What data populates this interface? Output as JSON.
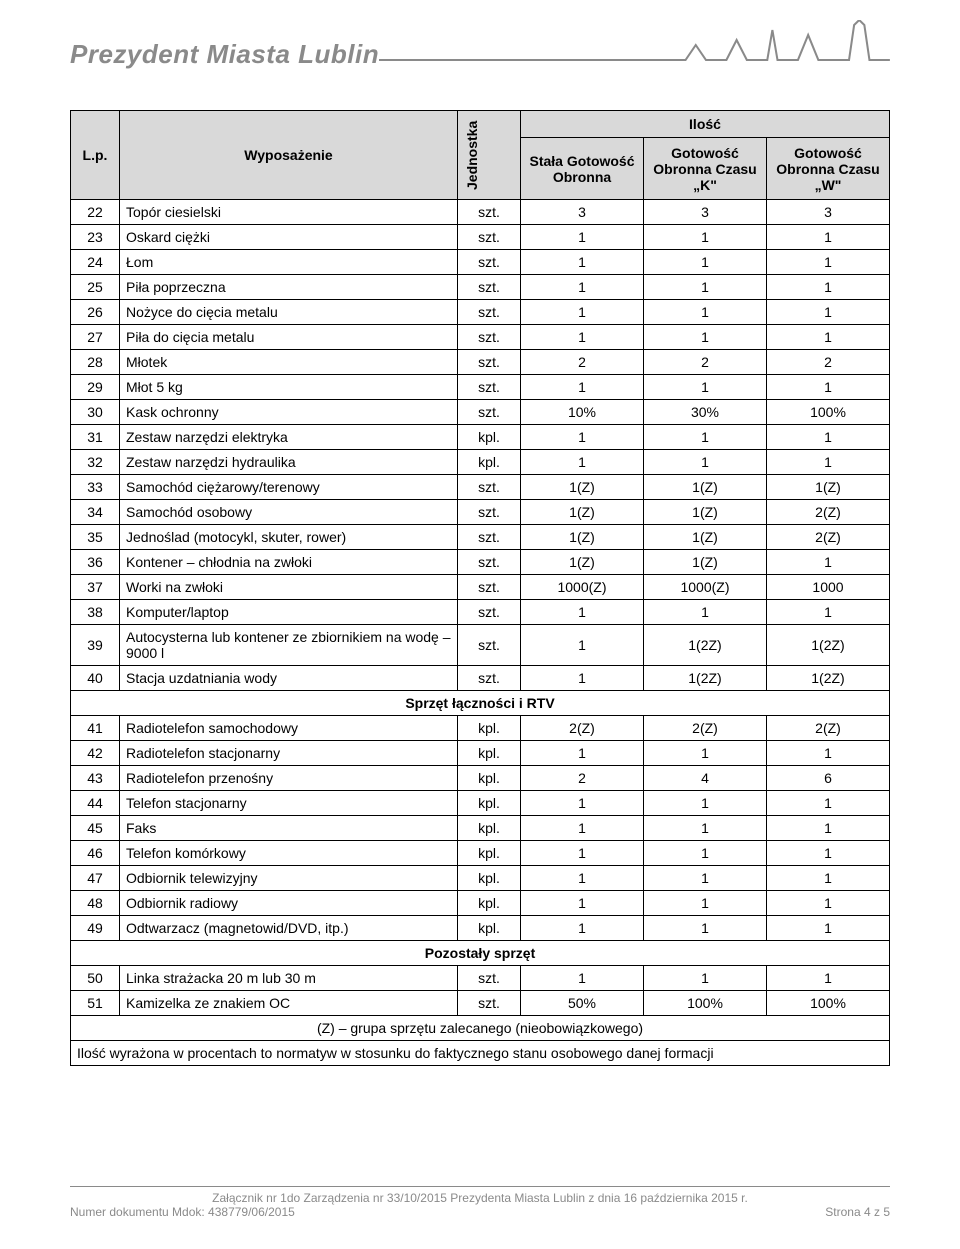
{
  "header": {
    "title": "Prezydent Miasta Lublin"
  },
  "table": {
    "headers": {
      "lp": "L.p.",
      "wyposazenie": "Wyposażenie",
      "jednostka": "Jednostka",
      "ilosc": "Ilość",
      "col1": "Stała Gotowość Obronna",
      "col2": "Gotowość Obronna Czasu „K\"",
      "col3": "Gotowość Obronna Czasu „W\""
    },
    "rows": [
      {
        "lp": "22",
        "name": "Topór ciesielski",
        "unit": "szt.",
        "v1": "3",
        "v2": "3",
        "v3": "3"
      },
      {
        "lp": "23",
        "name": "Oskard ciężki",
        "unit": "szt.",
        "v1": "1",
        "v2": "1",
        "v3": "1"
      },
      {
        "lp": "24",
        "name": "Łom",
        "unit": "szt.",
        "v1": "1",
        "v2": "1",
        "v3": "1"
      },
      {
        "lp": "25",
        "name": "Piła poprzeczna",
        "unit": "szt.",
        "v1": "1",
        "v2": "1",
        "v3": "1"
      },
      {
        "lp": "26",
        "name": "Nożyce do cięcia metalu",
        "unit": "szt.",
        "v1": "1",
        "v2": "1",
        "v3": "1"
      },
      {
        "lp": "27",
        "name": "Piła do cięcia metalu",
        "unit": "szt.",
        "v1": "1",
        "v2": "1",
        "v3": "1"
      },
      {
        "lp": "28",
        "name": "Młotek",
        "unit": "szt.",
        "v1": "2",
        "v2": "2",
        "v3": "2"
      },
      {
        "lp": "29",
        "name": "Młot 5 kg",
        "unit": "szt.",
        "v1": "1",
        "v2": "1",
        "v3": "1"
      },
      {
        "lp": "30",
        "name": "Kask ochronny",
        "unit": "szt.",
        "v1": "10%",
        "v2": "30%",
        "v3": "100%"
      },
      {
        "lp": "31",
        "name": "Zestaw narzędzi elektryka",
        "unit": "kpl.",
        "v1": "1",
        "v2": "1",
        "v3": "1"
      },
      {
        "lp": "32",
        "name": "Zestaw narzędzi hydraulika",
        "unit": "kpl.",
        "v1": "1",
        "v2": "1",
        "v3": "1"
      },
      {
        "lp": "33",
        "name": "Samochód ciężarowy/terenowy",
        "unit": "szt.",
        "v1": "1(Z)",
        "v2": "1(Z)",
        "v3": "1(Z)"
      },
      {
        "lp": "34",
        "name": "Samochód osobowy",
        "unit": "szt.",
        "v1": "1(Z)",
        "v2": "1(Z)",
        "v3": "2(Z)"
      },
      {
        "lp": "35",
        "name": "Jednoślad (motocykl, skuter, rower)",
        "unit": "szt.",
        "v1": "1(Z)",
        "v2": "1(Z)",
        "v3": "2(Z)"
      },
      {
        "lp": "36",
        "name": "Kontener – chłodnia na zwłoki",
        "unit": "szt.",
        "v1": "1(Z)",
        "v2": "1(Z)",
        "v3": "1"
      },
      {
        "lp": "37",
        "name": "Worki na zwłoki",
        "unit": "szt.",
        "v1": "1000(Z)",
        "v2": "1000(Z)",
        "v3": "1000"
      },
      {
        "lp": "38",
        "name": "Komputer/laptop",
        "unit": "szt.",
        "v1": "1",
        "v2": "1",
        "v3": "1"
      },
      {
        "lp": "39",
        "name": "Autocysterna lub kontener ze zbiornikiem na wodę – 9000 l",
        "unit": "szt.",
        "v1": "1",
        "v2": "1(2Z)",
        "v3": "1(2Z)"
      },
      {
        "lp": "40",
        "name": "Stacja uzdatniania wody",
        "unit": "szt.",
        "v1": "1",
        "v2": "1(2Z)",
        "v3": "1(2Z)"
      }
    ],
    "section1": "Sprzęt łączności i RTV",
    "rows2": [
      {
        "lp": "41",
        "name": "Radiotelefon samochodowy",
        "unit": "kpl.",
        "v1": "2(Z)",
        "v2": "2(Z)",
        "v3": "2(Z)"
      },
      {
        "lp": "42",
        "name": "Radiotelefon stacjonarny",
        "unit": "kpl.",
        "v1": "1",
        "v2": "1",
        "v3": "1"
      },
      {
        "lp": "43",
        "name": "Radiotelefon przenośny",
        "unit": "kpl.",
        "v1": "2",
        "v2": "4",
        "v3": "6"
      },
      {
        "lp": "44",
        "name": "Telefon stacjonarny",
        "unit": "kpl.",
        "v1": "1",
        "v2": "1",
        "v3": "1"
      },
      {
        "lp": "45",
        "name": "Faks",
        "unit": "kpl.",
        "v1": "1",
        "v2": "1",
        "v3": "1"
      },
      {
        "lp": "46",
        "name": "Telefon komórkowy",
        "unit": "kpl.",
        "v1": "1",
        "v2": "1",
        "v3": "1"
      },
      {
        "lp": "47",
        "name": "Odbiornik telewizyjny",
        "unit": "kpl.",
        "v1": "1",
        "v2": "1",
        "v3": "1"
      },
      {
        "lp": "48",
        "name": "Odbiornik radiowy",
        "unit": "kpl.",
        "v1": "1",
        "v2": "1",
        "v3": "1"
      },
      {
        "lp": "49",
        "name": "Odtwarzacz (magnetowid/DVD, itp.)",
        "unit": "kpl.",
        "v1": "1",
        "v2": "1",
        "v3": "1"
      }
    ],
    "section2": "Pozostały sprzęt",
    "rows3": [
      {
        "lp": "50",
        "name": "Linka strażacka 20 m lub 30 m",
        "unit": "szt.",
        "v1": "1",
        "v2": "1",
        "v3": "1"
      },
      {
        "lp": "51",
        "name": "Kamizelka ze znakiem OC",
        "unit": "szt.",
        "v1": "50%",
        "v2": "100%",
        "v3": "100%"
      }
    ],
    "note1": "(Z) – grupa sprzętu zalecanego (nieobowiązkowego)",
    "note2": "Ilość wyrażona w procentach to normatyw w stosunku do faktycznego stanu osobowego danej formacji"
  },
  "footer": {
    "line1": "Załącznik nr 1do Zarządzenia nr 33/10/2015 Prezydenta Miasta Lublin z dnia 16 października 2015 r.",
    "line2_left": "Numer dokumentu Mdok: 438779/06/2015",
    "line2_right": "Strona 4 z 5"
  },
  "colors": {
    "header_bg": "#d9d9d9",
    "text_gray": "#8a8a8a",
    "border": "#000000",
    "background": "#ffffff"
  }
}
